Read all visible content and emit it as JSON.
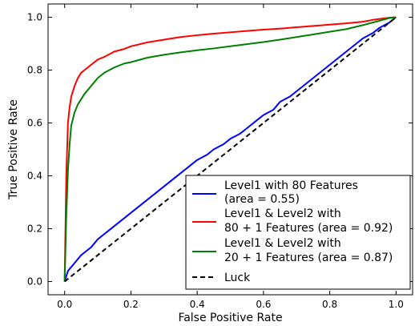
{
  "chart_data": {
    "type": "line",
    "xlabel": "False Positive Rate",
    "ylabel": "True Positive Rate",
    "xlim": [
      -0.05,
      1.05
    ],
    "ylim": [
      -0.05,
      1.05
    ],
    "xticks": [
      "0.0",
      "0.2",
      "0.4",
      "0.6",
      "0.8",
      "1.0"
    ],
    "yticks": [
      "0.0",
      "0.2",
      "0.4",
      "0.6",
      "0.8",
      "1.0"
    ],
    "grid": false,
    "legend_position": "lower-right",
    "series": [
      {
        "name": "Level1 with 80 Features (area = 0.55)",
        "legend_lines": [
          "Level1 with 80 Features",
          "(area = 0.55)"
        ],
        "color": "#0000ff",
        "dash": false,
        "x": [
          0.0,
          0.01,
          0.03,
          0.05,
          0.08,
          0.1,
          0.13,
          0.15,
          0.18,
          0.2,
          0.23,
          0.25,
          0.28,
          0.3,
          0.33,
          0.35,
          0.38,
          0.4,
          0.43,
          0.45,
          0.48,
          0.5,
          0.53,
          0.55,
          0.58,
          0.6,
          0.63,
          0.65,
          0.68,
          0.7,
          0.73,
          0.75,
          0.78,
          0.8,
          0.83,
          0.85,
          0.88,
          0.9,
          0.93,
          0.95,
          0.98,
          1.0
        ],
        "y": [
          0.0,
          0.04,
          0.07,
          0.1,
          0.13,
          0.16,
          0.19,
          0.21,
          0.24,
          0.26,
          0.29,
          0.31,
          0.34,
          0.36,
          0.39,
          0.41,
          0.44,
          0.46,
          0.48,
          0.5,
          0.52,
          0.54,
          0.56,
          0.58,
          0.61,
          0.63,
          0.65,
          0.68,
          0.7,
          0.72,
          0.75,
          0.77,
          0.8,
          0.82,
          0.85,
          0.87,
          0.9,
          0.92,
          0.94,
          0.96,
          0.98,
          1.0
        ]
      },
      {
        "name": "Level1 & Level2 with 80 + 1 Features (area = 0.92)",
        "legend_lines": [
          "Level1 & Level2 with",
          "80 + 1 Features (area = 0.92)"
        ],
        "color": "#ff0000",
        "dash": false,
        "x": [
          0.0,
          0.005,
          0.01,
          0.015,
          0.02,
          0.03,
          0.04,
          0.05,
          0.06,
          0.08,
          0.1,
          0.12,
          0.15,
          0.18,
          0.2,
          0.25,
          0.3,
          0.35,
          0.4,
          0.45,
          0.5,
          0.55,
          0.6,
          0.65,
          0.7,
          0.75,
          0.8,
          0.85,
          0.9,
          0.93,
          0.96,
          0.98,
          1.0
        ],
        "y": [
          0.0,
          0.4,
          0.6,
          0.66,
          0.7,
          0.74,
          0.77,
          0.79,
          0.8,
          0.82,
          0.84,
          0.85,
          0.87,
          0.88,
          0.89,
          0.905,
          0.915,
          0.925,
          0.932,
          0.938,
          0.943,
          0.948,
          0.953,
          0.957,
          0.962,
          0.967,
          0.972,
          0.977,
          0.983,
          0.99,
          0.995,
          0.998,
          1.0
        ]
      },
      {
        "name": "Level1 & Level2 with 20 + 1 Features (area = 0.87)",
        "legend_lines": [
          "Level1 & Level2 with",
          "20 + 1 Features (area = 0.87)"
        ],
        "color": "#008000",
        "dash": false,
        "x": [
          0.0,
          0.005,
          0.01,
          0.015,
          0.02,
          0.03,
          0.04,
          0.05,
          0.06,
          0.08,
          0.1,
          0.12,
          0.15,
          0.18,
          0.2,
          0.25,
          0.3,
          0.35,
          0.4,
          0.45,
          0.5,
          0.55,
          0.6,
          0.65,
          0.7,
          0.75,
          0.8,
          0.85,
          0.9,
          0.93,
          0.96,
          0.98,
          1.0
        ],
        "y": [
          0.0,
          0.25,
          0.42,
          0.52,
          0.59,
          0.64,
          0.67,
          0.69,
          0.71,
          0.74,
          0.77,
          0.79,
          0.81,
          0.825,
          0.83,
          0.847,
          0.858,
          0.867,
          0.875,
          0.882,
          0.89,
          0.898,
          0.906,
          0.915,
          0.925,
          0.935,
          0.945,
          0.955,
          0.97,
          0.98,
          0.99,
          0.997,
          1.0
        ]
      },
      {
        "name": "Luck",
        "legend_lines": [
          "Luck"
        ],
        "color": "#000000",
        "dash": true,
        "x": [
          0.0,
          1.0
        ],
        "y": [
          0.0,
          1.0
        ]
      }
    ]
  }
}
